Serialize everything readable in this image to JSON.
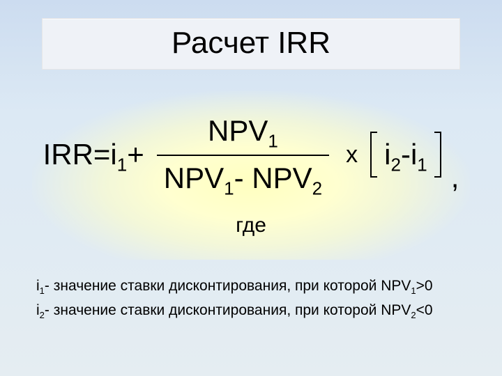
{
  "title": "Расчет  IRR",
  "formula": {
    "lhs_pre": "IRR=i",
    "lhs_sub": "1",
    "lhs_post": "+",
    "numerator_pre": "NPV",
    "numerator_sub": "1",
    "denom_a_pre": "NPV",
    "denom_a_sub": "1",
    "denom_minus": "- ",
    "denom_b_pre": "NPV",
    "denom_b_sub": "2",
    "mult": "х",
    "diff_a_pre": "i",
    "diff_a_sub": "2",
    "diff_minus": "-",
    "diff_b_pre": "i",
    "diff_b_sub": "1",
    "comma": ","
  },
  "where_label": "где",
  "legend": {
    "line1_pre": "i",
    "line1_sub": "1",
    "line1_mid": "- значение ставки дисконтирования, при которой NPV",
    "line1_npvsub": "1",
    "line1_post": ">0",
    "line2_pre": "i",
    "line2_sub": "2",
    "line2_mid": "- значение ставки дисконтирования, при которой NPV",
    "line2_npvsub": "2",
    "line2_post": "<0"
  },
  "colors": {
    "bg_top": "#ccdcf0",
    "bg_bottom": "#e5edf2",
    "title_bg": "#eff2f7",
    "highlight": "#ffffc0",
    "text": "#000000"
  }
}
